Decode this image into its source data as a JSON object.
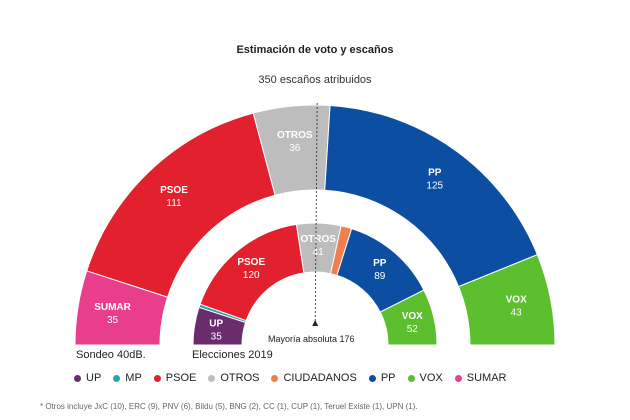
{
  "chart_data": {
    "type": "pie",
    "variant": "double-semicircle-parliament",
    "title": "Estimación de voto y escaños",
    "subtitle": "350 escaños atribuidos",
    "total_seats": 350,
    "majority": {
      "label": "Mayoría absoluta 176",
      "seats": 176
    },
    "rings": [
      {
        "name": "Sondeo 40dB.",
        "ring": "outer",
        "segments": [
          {
            "party": "SUMAR",
            "seats": 35,
            "color": "#e83e8c"
          },
          {
            "party": "PSOE",
            "seats": 111,
            "color": "#e3202d"
          },
          {
            "party": "OTROS",
            "seats": 36,
            "color": "#bdbdbd"
          },
          {
            "party": "PP",
            "seats": 125,
            "color": "#0b4ea2"
          },
          {
            "party": "VOX",
            "seats": 43,
            "color": "#5bbf2e"
          }
        ]
      },
      {
        "name": "Elecciones 2019",
        "ring": "inner",
        "segments": [
          {
            "party": "UP",
            "seats": 35,
            "color": "#6b2c6e"
          },
          {
            "party": "MP",
            "seats": 3,
            "color": "#2ba5a3"
          },
          {
            "party": "PSOE",
            "seats": 120,
            "color": "#e3202d"
          },
          {
            "party": "OTROS",
            "seats": 41,
            "color": "#bdbdbd"
          },
          {
            "party": "CIUDADANOS",
            "seats": 10,
            "color": "#f07e4f"
          },
          {
            "party": "PP",
            "seats": 89,
            "color": "#0b4ea2"
          },
          {
            "party": "VOX",
            "seats": 52,
            "color": "#5bbf2e"
          }
        ]
      }
    ],
    "legend": [
      {
        "label": "UP",
        "color": "#6b2c6e"
      },
      {
        "label": "MP",
        "color": "#2ba5a3"
      },
      {
        "label": "PSOE",
        "color": "#e3202d"
      },
      {
        "label": "OTROS",
        "color": "#bdbdbd"
      },
      {
        "label": "CIUDADANOS",
        "color": "#f07e4f"
      },
      {
        "label": "PP",
        "color": "#0b4ea2"
      },
      {
        "label": "VOX",
        "color": "#5bbf2e"
      },
      {
        "label": "SUMAR",
        "color": "#e83e8c"
      }
    ],
    "footnote": "* Otros incluye JxC (10), ERC (9), PNV (6), Bildu (5), BNG (2), CC (1), CUP (1), Teruel Existe (1), UPN (1)."
  }
}
